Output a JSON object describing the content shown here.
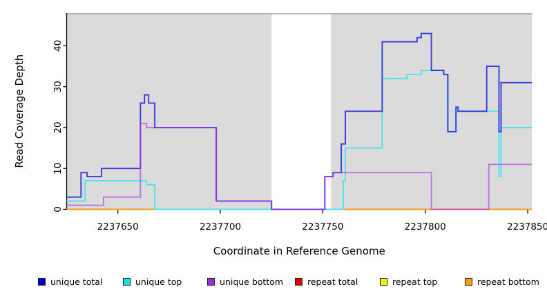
{
  "chart_data": {
    "type": "line",
    "subtype": "step-coverage",
    "title": "",
    "xlabel": "Coordinate in Reference Genome",
    "ylabel": "Read Coverage Depth",
    "xlim": [
      2237625,
      2237852
    ],
    "ylim": [
      0,
      48
    ],
    "x_ticks": [
      2237650,
      2237700,
      2237750,
      2237800,
      2237850
    ],
    "y_ticks": [
      0,
      10,
      20,
      30,
      40
    ],
    "grid": false,
    "legend_position": "bottom",
    "plot_bg_color": "#DBDBDB",
    "top_border_color": "#A9A9A9",
    "axis_color": "#000000",
    "shaded_regions": [
      [
        2237625,
        2237725
      ],
      [
        2237754,
        2237852
      ]
    ],
    "unshaded_gap": [
      2237725,
      2237754
    ],
    "series": [
      {
        "name": "repeat total",
        "line_color": "#DD0000",
        "opacity": 1,
        "end": 2237852,
        "steps": [
          [
            2237625,
            0
          ]
        ]
      },
      {
        "name": "repeat top",
        "line_color": "#EEEE22",
        "opacity": 1,
        "end": 2237852,
        "steps": [
          [
            2237625,
            0
          ]
        ]
      },
      {
        "name": "repeat bottom",
        "line_color": "#FF9912",
        "opacity": 1,
        "end": 2237852,
        "steps": [
          [
            2237625,
            0
          ]
        ]
      },
      {
        "name": "unique top",
        "line_color": "#4FE3EC",
        "opacity": 1,
        "end": 2237852,
        "steps": [
          [
            2237625,
            2
          ],
          [
            2237634,
            7
          ],
          [
            2237664,
            6
          ],
          [
            2237668,
            0
          ],
          [
            2237760,
            7
          ],
          [
            2237761,
            15
          ],
          [
            2237779,
            32
          ],
          [
            2237791,
            33
          ],
          [
            2237798,
            34
          ],
          [
            2237809,
            33
          ],
          [
            2237811,
            19
          ],
          [
            2237815,
            25
          ],
          [
            2237816,
            24
          ],
          [
            2237836,
            8
          ],
          [
            2237837,
            20
          ]
        ]
      },
      {
        "name": "unique total",
        "line_color": "#2424DC",
        "opacity": 0.88,
        "end": 2237852,
        "steps": [
          [
            2237625,
            3
          ],
          [
            2237632,
            9
          ],
          [
            2237635,
            8
          ],
          [
            2237642,
            10
          ],
          [
            2237661,
            26
          ],
          [
            2237663,
            28
          ],
          [
            2237665,
            26
          ],
          [
            2237668,
            20
          ],
          [
            2237698,
            2
          ],
          [
            2237725,
            0
          ],
          [
            2237751,
            8
          ],
          [
            2237755,
            9
          ],
          [
            2237759,
            16
          ],
          [
            2237761,
            24
          ],
          [
            2237779,
            41
          ],
          [
            2237796,
            42
          ],
          [
            2237798,
            43
          ],
          [
            2237803,
            34
          ],
          [
            2237809,
            33
          ],
          [
            2237811,
            19
          ],
          [
            2237815,
            25
          ],
          [
            2237816,
            24
          ],
          [
            2237830,
            35
          ],
          [
            2237836,
            19
          ],
          [
            2237837,
            31
          ]
        ]
      },
      {
        "name": "unique bottom",
        "line_color": "#AE32E6",
        "opacity": 0.62,
        "end": 2237852,
        "steps": [
          [
            2237625,
            1
          ],
          [
            2237643,
            3
          ],
          [
            2237661,
            21
          ],
          [
            2237664,
            20
          ],
          [
            2237698,
            2
          ],
          [
            2237725,
            0
          ],
          [
            2237751,
            8
          ],
          [
            2237755,
            9
          ],
          [
            2237803,
            0
          ],
          [
            2237831,
            11
          ]
        ]
      }
    ]
  },
  "legend": {
    "items": [
      {
        "label": "unique total",
        "color": "#0000CC"
      },
      {
        "label": "unique top",
        "color": "#00E5E5"
      },
      {
        "label": "unique bottom",
        "color": "#9932CC"
      },
      {
        "label": "repeat total",
        "color": "#E00000"
      },
      {
        "label": "repeat top",
        "color": "#F0F000"
      },
      {
        "label": "repeat bottom",
        "color": "#FFA000"
      }
    ]
  }
}
